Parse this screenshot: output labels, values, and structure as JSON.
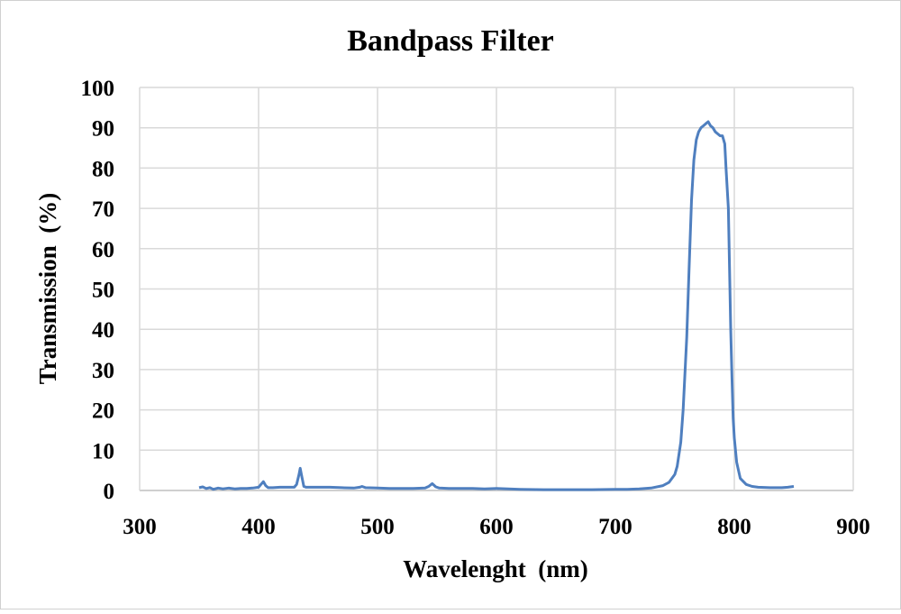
{
  "chart_data": {
    "type": "line",
    "title": "Bandpass Filter",
    "xlabel": "Wavelenght  (nm)",
    "ylabel": "Transmission  (%)",
    "xlim": [
      300,
      900
    ],
    "ylim": [
      0,
      100
    ],
    "xticks": [
      300,
      400,
      500,
      600,
      700,
      800,
      900
    ],
    "yticks": [
      0,
      10,
      20,
      30,
      40,
      50,
      60,
      70,
      80,
      90,
      100
    ],
    "grid": true,
    "line_color": "#4f7fbf",
    "series": [
      {
        "x": [
          350,
          353,
          356,
          359,
          362,
          366,
          370,
          375,
          380,
          385,
          390,
          395,
          400,
          402,
          404,
          406,
          408,
          412,
          418,
          425,
          430,
          432,
          434,
          435,
          436,
          438,
          440,
          450,
          460,
          470,
          480,
          485,
          487,
          490,
          500,
          510,
          520,
          530,
          540,
          543,
          546,
          549,
          552,
          560,
          570,
          580,
          590,
          600,
          620,
          640,
          660,
          680,
          700,
          710,
          720,
          730,
          740,
          745,
          750,
          752,
          755,
          757,
          760,
          762,
          764,
          766,
          768,
          770,
          772,
          774,
          776,
          778,
          780,
          782,
          784,
          786,
          788,
          790,
          792,
          793,
          795,
          796,
          797,
          798,
          799,
          800,
          802,
          805,
          810,
          815,
          820,
          830,
          840,
          845,
          850
        ],
        "y": [
          0.7,
          0.9,
          0.5,
          0.7,
          0.3,
          0.6,
          0.4,
          0.6,
          0.4,
          0.5,
          0.5,
          0.6,
          0.8,
          1.5,
          2.2,
          1.2,
          0.7,
          0.7,
          0.8,
          0.8,
          0.8,
          1.5,
          4.0,
          5.5,
          4.0,
          1.0,
          0.8,
          0.8,
          0.8,
          0.7,
          0.6,
          0.8,
          1.0,
          0.7,
          0.6,
          0.5,
          0.5,
          0.5,
          0.6,
          1.0,
          1.7,
          0.9,
          0.6,
          0.5,
          0.5,
          0.5,
          0.4,
          0.5,
          0.3,
          0.2,
          0.2,
          0.2,
          0.3,
          0.3,
          0.4,
          0.6,
          1.2,
          2.0,
          4.0,
          6.0,
          12,
          20,
          38,
          55,
          72,
          82,
          87,
          89,
          90,
          90.5,
          91,
          91.5,
          90.5,
          90,
          89,
          88.5,
          88,
          88,
          86,
          80,
          70,
          55,
          40,
          28,
          18,
          13,
          7,
          3,
          1.5,
          1.0,
          0.8,
          0.7,
          0.7,
          0.8,
          1.0
        ]
      }
    ]
  }
}
